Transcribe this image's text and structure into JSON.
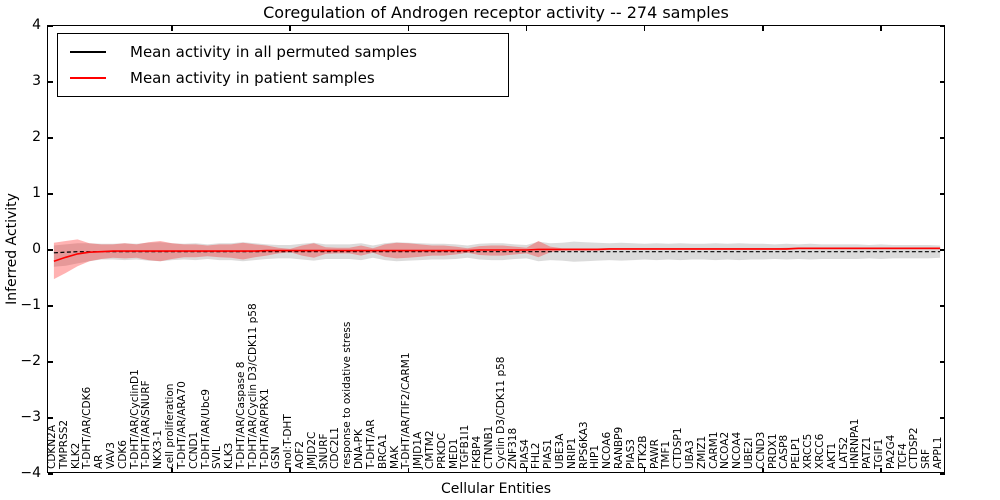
{
  "figure": {
    "title": "Coregulation of Androgen receptor activity -- 274 samples",
    "xlabel": "Cellular Entities",
    "ylabel": "Inferred Activity"
  },
  "legend": {
    "entries": [
      {
        "label": "Mean activity in all permuted samples",
        "color": "#000000"
      },
      {
        "label": "Mean activity in patient samples",
        "color": "#ff0000"
      }
    ]
  },
  "chart_data": {
    "type": "line",
    "title": "Coregulation of Androgen receptor activity -- 274 samples",
    "xlabel": "Cellular Entities",
    "ylabel": "Inferred Activity",
    "ylim": [
      -4,
      4
    ],
    "yticks": [
      4,
      3,
      2,
      1,
      0,
      -1,
      -2,
      -3,
      -4
    ],
    "grid": false,
    "legend_position": "upper left",
    "categories": [
      "CDKN2A",
      "TMPRSS2",
      "KLK2",
      "T-DHT/AR/CDK6",
      "AR",
      "VAV3",
      "CDK6",
      "T-DHT/AR/CyclinD1",
      "T-DHT/AR/SNURF",
      "NKX3-1",
      "cell proliferation",
      "T-DHT/AR/ARA70",
      "CCND1",
      "T-DHT/AR/Ubc9",
      "SVIL",
      "KLK3",
      "T-DHT/AR/Caspase 8",
      "T-DHT/AR/Cyclin D3/CDK11 p58",
      "T-DHT/AR/PRX1",
      "GSN",
      "mol:T-DHT",
      "AOF2",
      "JMJD2C",
      "SNURF",
      "CDC2L1",
      "response to oxidative stress",
      "DNA-PK",
      "T-DHT/AR",
      "BRCA1",
      "MAK",
      "T-DHT/AR/TIF2/CARM1",
      "JMJD1A",
      "CMTM2",
      "PRKDC",
      "MED1",
      "TGFB1I1",
      "FKBP4",
      "CTNNB1",
      "Cyclin D3/CDK11 p58",
      "ZNF318",
      "PIAS4",
      "FHL2",
      "PIAS1",
      "UBE3A",
      "NRIP1",
      "RPS6KA3",
      "HIP1",
      "NCOA6",
      "RANBP9",
      "PIAS3",
      "PTK2B",
      "PAWR",
      "TMF1",
      "CTDSP1",
      "UBA3",
      "ZMIZ1",
      "CARM1",
      "NCOA2",
      "NCOA4",
      "UBE2I",
      "CCND3",
      "PRDX1",
      "CASP8",
      "PELP1",
      "XRCC5",
      "XRCC6",
      "AKT1",
      "LATS2",
      "HNRNPA1",
      "PATZ1",
      "TGIF1",
      "PA2G4",
      "TCF4",
      "CTDSP2",
      "SRF",
      "APPL1"
    ],
    "series": [
      {
        "name": "Mean activity in all permuted samples",
        "color": "#000000",
        "line_style": "dashed",
        "band_color": "rgba(110,110,110,0.25)",
        "values": [
          -0.05,
          -0.04,
          -0.03,
          -0.03,
          -0.03,
          -0.03,
          -0.03,
          -0.03,
          -0.03,
          -0.03,
          -0.03,
          -0.03,
          -0.03,
          -0.03,
          -0.03,
          -0.03,
          -0.03,
          -0.03,
          -0.03,
          -0.03,
          -0.03,
          -0.03,
          -0.03,
          -0.03,
          -0.03,
          -0.03,
          -0.03,
          -0.03,
          -0.03,
          -0.03,
          -0.03,
          -0.03,
          -0.03,
          -0.03,
          -0.03,
          -0.03,
          -0.03,
          -0.03,
          -0.03,
          -0.03,
          -0.03,
          -0.03,
          -0.03,
          -0.03,
          -0.03,
          -0.03,
          -0.03,
          -0.03,
          -0.03,
          -0.03,
          -0.03,
          -0.03,
          -0.03,
          -0.03,
          -0.03,
          -0.03,
          -0.03,
          -0.03,
          -0.03,
          -0.03,
          -0.03,
          -0.03,
          -0.03,
          -0.03,
          -0.03,
          -0.03,
          -0.03,
          -0.03,
          -0.03,
          -0.03,
          -0.03,
          -0.03,
          -0.03,
          -0.03,
          -0.03,
          -0.03
        ],
        "band_upper": [
          0.08,
          0.1,
          0.12,
          0.12,
          0.11,
          0.11,
          0.12,
          0.11,
          0.13,
          0.14,
          0.12,
          0.11,
          0.12,
          0.1,
          0.12,
          0.12,
          0.14,
          0.12,
          0.1,
          0.09,
          0.09,
          0.11,
          0.13,
          0.1,
          0.1,
          0.1,
          0.12,
          0.08,
          0.12,
          0.14,
          0.13,
          0.12,
          0.11,
          0.11,
          0.1,
          0.08,
          0.11,
          0.12,
          0.12,
          0.1,
          0.09,
          0.15,
          0.12,
          0.13,
          0.15,
          0.14,
          0.13,
          0.12,
          0.13,
          0.12,
          0.11,
          0.12,
          0.11,
          0.12,
          0.11,
          0.11,
          0.12,
          0.11,
          0.12,
          0.11,
          0.11,
          0.1,
          0.11,
          0.1,
          0.11,
          0.1,
          0.1,
          0.1,
          0.1,
          0.09,
          0.1,
          0.09,
          0.09,
          0.09,
          0.09,
          0.08
        ],
        "band_lower": [
          -0.3,
          -0.28,
          -0.24,
          -0.2,
          -0.17,
          -0.17,
          -0.18,
          -0.17,
          -0.19,
          -0.2,
          -0.18,
          -0.17,
          -0.18,
          -0.16,
          -0.18,
          -0.18,
          -0.2,
          -0.18,
          -0.16,
          -0.15,
          -0.15,
          -0.17,
          -0.19,
          -0.16,
          -0.16,
          -0.16,
          -0.18,
          -0.14,
          -0.18,
          -0.2,
          -0.19,
          -0.18,
          -0.17,
          -0.17,
          -0.16,
          -0.14,
          -0.17,
          -0.18,
          -0.18,
          -0.16,
          -0.15,
          -0.2,
          -0.18,
          -0.19,
          -0.21,
          -0.2,
          -0.19,
          -0.18,
          -0.19,
          -0.18,
          -0.17,
          -0.18,
          -0.17,
          -0.18,
          -0.17,
          -0.17,
          -0.18,
          -0.17,
          -0.18,
          -0.17,
          -0.17,
          -0.16,
          -0.17,
          -0.16,
          -0.17,
          -0.16,
          -0.16,
          -0.16,
          -0.16,
          -0.15,
          -0.16,
          -0.15,
          -0.15,
          -0.15,
          -0.15,
          -0.14
        ]
      },
      {
        "name": "Mean activity in patient samples",
        "color": "#ff0000",
        "line_style": "solid",
        "band_color": "rgba(255,0,0,0.30)",
        "values": [
          -0.2,
          -0.13,
          -0.07,
          -0.04,
          -0.03,
          -0.02,
          -0.02,
          -0.02,
          -0.02,
          -0.02,
          -0.02,
          -0.02,
          -0.02,
          -0.02,
          -0.02,
          -0.02,
          -0.02,
          -0.02,
          -0.01,
          -0.01,
          -0.01,
          -0.01,
          -0.01,
          -0.01,
          -0.01,
          -0.01,
          -0.01,
          -0.01,
          -0.01,
          -0.01,
          -0.01,
          -0.01,
          -0.01,
          -0.01,
          -0.01,
          -0.01,
          0.0,
          0.0,
          0.0,
          0.0,
          0.0,
          0.01,
          0.01,
          0.01,
          0.01,
          0.01,
          0.01,
          0.02,
          0.02,
          0.02,
          0.02,
          0.02,
          0.02,
          0.02,
          0.02,
          0.02,
          0.02,
          0.02,
          0.02,
          0.02,
          0.02,
          0.02,
          0.02,
          0.03,
          0.03,
          0.03,
          0.03,
          0.03,
          0.03,
          0.03,
          0.03,
          0.03,
          0.03,
          0.03,
          0.03,
          0.03
        ],
        "band_upper": [
          0.13,
          0.16,
          0.19,
          0.12,
          0.1,
          0.1,
          0.12,
          0.1,
          0.14,
          0.16,
          0.12,
          0.1,
          0.1,
          0.08,
          0.1,
          0.1,
          0.13,
          0.1,
          0.08,
          0.04,
          0.02,
          0.08,
          0.12,
          0.05,
          0.04,
          0.04,
          0.08,
          0.03,
          0.1,
          0.13,
          0.12,
          0.1,
          0.08,
          0.08,
          0.06,
          0.03,
          0.07,
          0.08,
          0.08,
          0.06,
          0.04,
          0.16,
          0.06,
          0.03,
          0.03,
          0.03,
          0.03,
          0.03,
          0.03,
          0.03,
          0.03,
          0.03,
          0.03,
          0.03,
          0.03,
          0.03,
          0.03,
          0.03,
          0.03,
          0.03,
          0.03,
          0.03,
          0.04,
          0.04,
          0.04,
          0.04,
          0.04,
          0.04,
          0.04,
          0.04,
          0.04,
          0.04,
          0.04,
          0.04,
          0.04,
          0.04
        ],
        "band_lower": [
          -0.52,
          -0.41,
          -0.29,
          -0.2,
          -0.16,
          -0.14,
          -0.15,
          -0.14,
          -0.18,
          -0.2,
          -0.16,
          -0.13,
          -0.13,
          -0.11,
          -0.13,
          -0.14,
          -0.17,
          -0.13,
          -0.1,
          -0.06,
          -0.04,
          -0.1,
          -0.14,
          -0.07,
          -0.06,
          -0.06,
          -0.1,
          -0.05,
          -0.12,
          -0.15,
          -0.14,
          -0.12,
          -0.1,
          -0.1,
          -0.08,
          -0.05,
          -0.09,
          -0.1,
          -0.1,
          -0.08,
          -0.06,
          -0.13,
          -0.04,
          -0.01,
          -0.01,
          -0.01,
          -0.01,
          0.0,
          0.0,
          0.0,
          0.0,
          0.0,
          0.0,
          0.0,
          0.0,
          0.0,
          0.0,
          0.0,
          0.0,
          0.0,
          0.0,
          0.0,
          0.0,
          0.01,
          0.01,
          0.01,
          0.01,
          0.01,
          0.01,
          0.01,
          0.01,
          0.01,
          0.01,
          0.01,
          0.01,
          0.01
        ]
      }
    ]
  }
}
